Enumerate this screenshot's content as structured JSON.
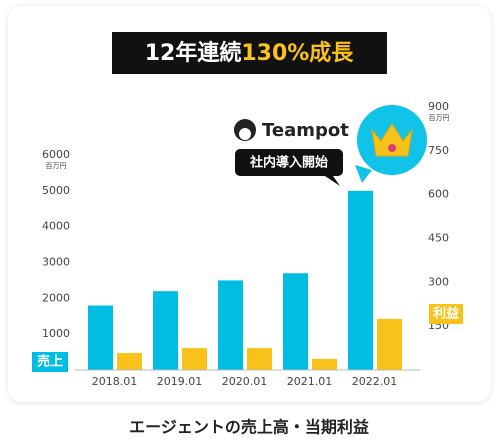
{
  "chart_data": {
    "type": "bar",
    "title": "12年連続",
    "title_highlight": "130%成長",
    "brand": "Teampot",
    "callout": "社内導入開始",
    "caption": "エージェントの売上高・当期利益",
    "y_unit": "百万円",
    "y2_unit": "百万円",
    "categories": [
      "2018.01",
      "2019.01",
      "2020.01",
      "2021.01",
      "2022.01"
    ],
    "series": [
      {
        "name": "売上",
        "color": "#00bde3",
        "values": [
          1800,
          2200,
          2500,
          2700,
          5000
        ]
      },
      {
        "name": "利益",
        "color": "#f9c21a",
        "axis": "y2",
        "values": [
          58,
          75,
          75,
          38,
          175
        ]
      }
    ],
    "ylim": [
      0,
      6000
    ],
    "yticks": [
      1000,
      2000,
      3000,
      4000,
      5000,
      6000
    ],
    "y2lim": [
      0,
      900
    ],
    "y2ticks": [
      150,
      300,
      450,
      600,
      750,
      900
    ]
  }
}
